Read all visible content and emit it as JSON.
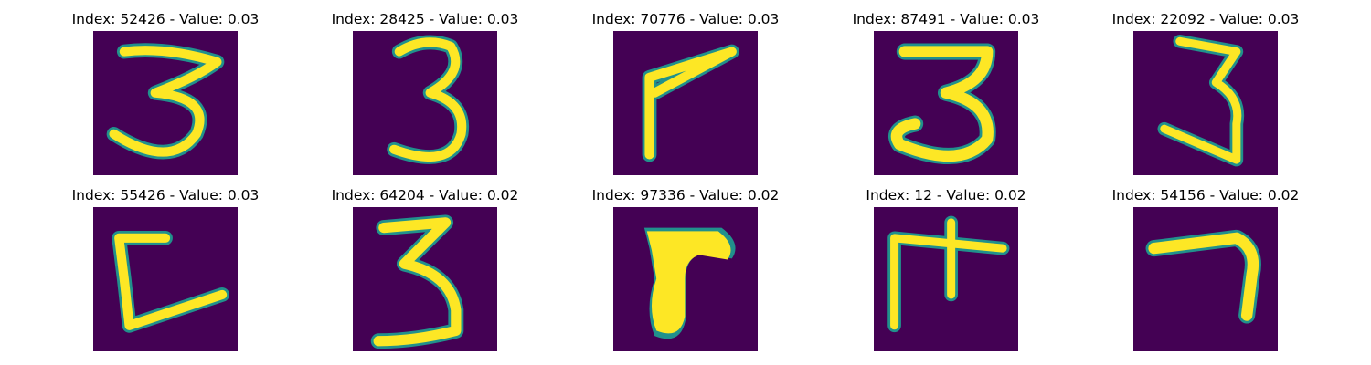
{
  "colors": {
    "background": "#440154",
    "low": "#21918c",
    "high": "#fde725"
  },
  "panels": [
    {
      "title": "Index: 52426 - Value: 0.03",
      "glyph": "three-icon"
    },
    {
      "title": "Index: 28425 - Value: 0.03",
      "glyph": "three-icon"
    },
    {
      "title": "Index: 70776 - Value: 0.03",
      "glyph": "seven-icon"
    },
    {
      "title": "Index: 87491 - Value: 0.03",
      "glyph": "three-icon"
    },
    {
      "title": "Index: 22092 - Value: 0.03",
      "glyph": "three-icon"
    },
    {
      "title": "Index: 55426 - Value: 0.03",
      "glyph": "c-shape-icon"
    },
    {
      "title": "Index: 64204 - Value: 0.02",
      "glyph": "three-icon"
    },
    {
      "title": "Index: 97336 - Value: 0.02",
      "glyph": "seven-icon"
    },
    {
      "title": "Index: 12 - Value: 0.02",
      "glyph": "glyph-icon"
    },
    {
      "title": "Index: 54156 - Value: 0.02",
      "glyph": "seven-icon"
    }
  ]
}
